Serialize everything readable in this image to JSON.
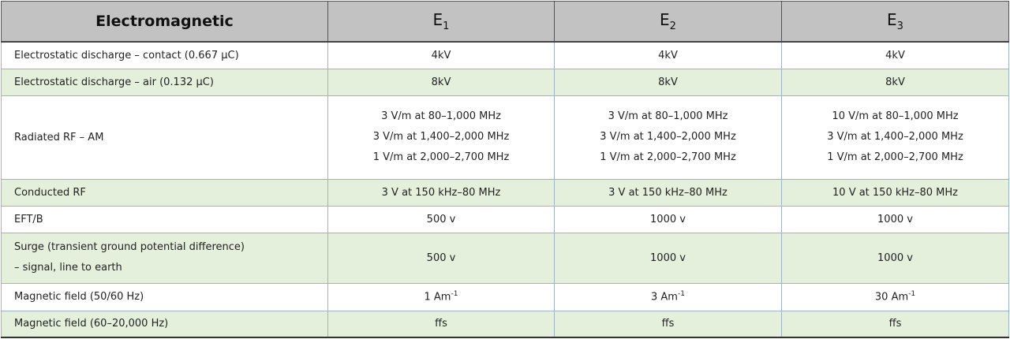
{
  "header": {
    "title": "Electromagnetic",
    "columns": [
      {
        "base": "E",
        "sub": "1"
      },
      {
        "base": "E",
        "sub": "2"
      },
      {
        "base": "E",
        "sub": "3"
      }
    ]
  },
  "colors": {
    "header_bg": "#c2c2c2",
    "alt_row_bg": "#e4efdc",
    "border": "#9fb3c6"
  },
  "rows": [
    {
      "label": "Electrostatic discharge – contact (0.667 µC)",
      "values": [
        "4kV",
        "4kV",
        "4kV"
      ]
    },
    {
      "label": "Electrostatic discharge – air (0.132 µC)",
      "values": [
        "8kV",
        "8kV",
        "8kV"
      ]
    },
    {
      "label": "Radiated RF – AM",
      "values": [
        [
          "3 V/m at 80–1,000 MHz",
          "3 V/m at 1,400–2,000 MHz",
          "1 V/m at 2,000–2,700 MHz"
        ],
        [
          "3 V/m at 80–1,000 MHz",
          "3 V/m at 1,400–2,000 MHz",
          "1 V/m at 2,000–2,700 MHz"
        ],
        [
          "10 V/m at 80–1,000 MHz",
          "3 V/m at 1,400–2,000 MHz",
          "1 V/m at 2,000–2,700 MHz"
        ]
      ]
    },
    {
      "label": "Conducted RF",
      "values": [
        "3 V at 150 kHz–80 MHz",
        "3 V at 150 kHz–80 MHz",
        "10 V at 150 kHz–80 MHz"
      ]
    },
    {
      "label": "EFT/B",
      "values": [
        "500 v",
        "1000 v",
        "1000 v"
      ]
    },
    {
      "label_lines": [
        "Surge (transient ground potential difference)",
        "– signal, line to earth"
      ],
      "values": [
        "500 v",
        "1000 v",
        "1000 v"
      ]
    },
    {
      "label": "Magnetic field (50/60 Hz)",
      "values": [
        {
          "base": "1 Am",
          "sup": "-1"
        },
        {
          "base": "3 Am",
          "sup": "-1"
        },
        {
          "base": "30 Am",
          "sup": "-1"
        }
      ]
    },
    {
      "label": "Magnetic field (60–20,000 Hz)",
      "values": [
        "ffs",
        "ffs",
        "ffs"
      ]
    }
  ]
}
